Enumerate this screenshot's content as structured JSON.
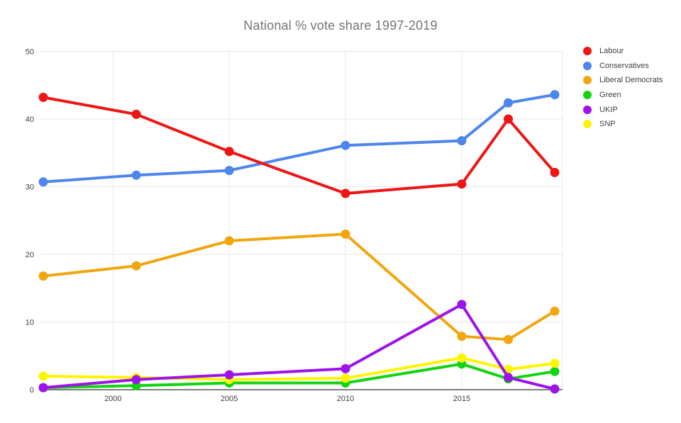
{
  "chart_data": {
    "type": "line",
    "title": "National % vote share 1997-2019",
    "x": [
      1997,
      2001,
      2005,
      2010,
      2015,
      2017,
      2019
    ],
    "x_gridline_years": [
      2000,
      2005,
      2010,
      2015
    ],
    "x_tick_labels": [
      "2000",
      "2005",
      "2010",
      "2015"
    ],
    "y_ticks": [
      0,
      10,
      20,
      30,
      40,
      50
    ],
    "ylim": [
      0,
      50
    ],
    "xlabel": "",
    "ylabel": "",
    "grid": true,
    "legend_position": "right",
    "series": [
      {
        "name": "Labour",
        "color": "#ED1515",
        "values": [
          43.2,
          40.7,
          35.2,
          29.0,
          30.4,
          40.0,
          32.1
        ]
      },
      {
        "name": "Conservatives",
        "color": "#4E86EC",
        "values": [
          30.7,
          31.7,
          32.4,
          36.1,
          36.8,
          42.4,
          43.6
        ]
      },
      {
        "name": "Liberal Democrats",
        "color": "#F0A60E",
        "values": [
          16.8,
          18.3,
          22.0,
          23.0,
          7.9,
          7.4,
          11.6
        ]
      },
      {
        "name": "Green",
        "color": "#12D412",
        "values": [
          0.3,
          0.6,
          1.0,
          1.0,
          3.8,
          1.6,
          2.7
        ]
      },
      {
        "name": "UKIP",
        "color": "#9D13E8",
        "values": [
          0.3,
          1.5,
          2.2,
          3.1,
          12.6,
          1.8,
          0.1
        ]
      },
      {
        "name": "SNP",
        "color": "#FDF500",
        "values": [
          2.0,
          1.8,
          1.5,
          1.7,
          4.7,
          3.0,
          3.9
        ]
      }
    ],
    "draw_order": [
      "Conservatives",
      "Liberal Democrats",
      "Green",
      "SNP",
      "UKIP",
      "Labour"
    ]
  },
  "style": {
    "background": "#ffffff",
    "title_color": "#757575",
    "axis_label_color": "#404040",
    "legend_label_color": "#3C4043",
    "gridline_color": "#E8E8E8",
    "baseline_color": "#555555"
  }
}
